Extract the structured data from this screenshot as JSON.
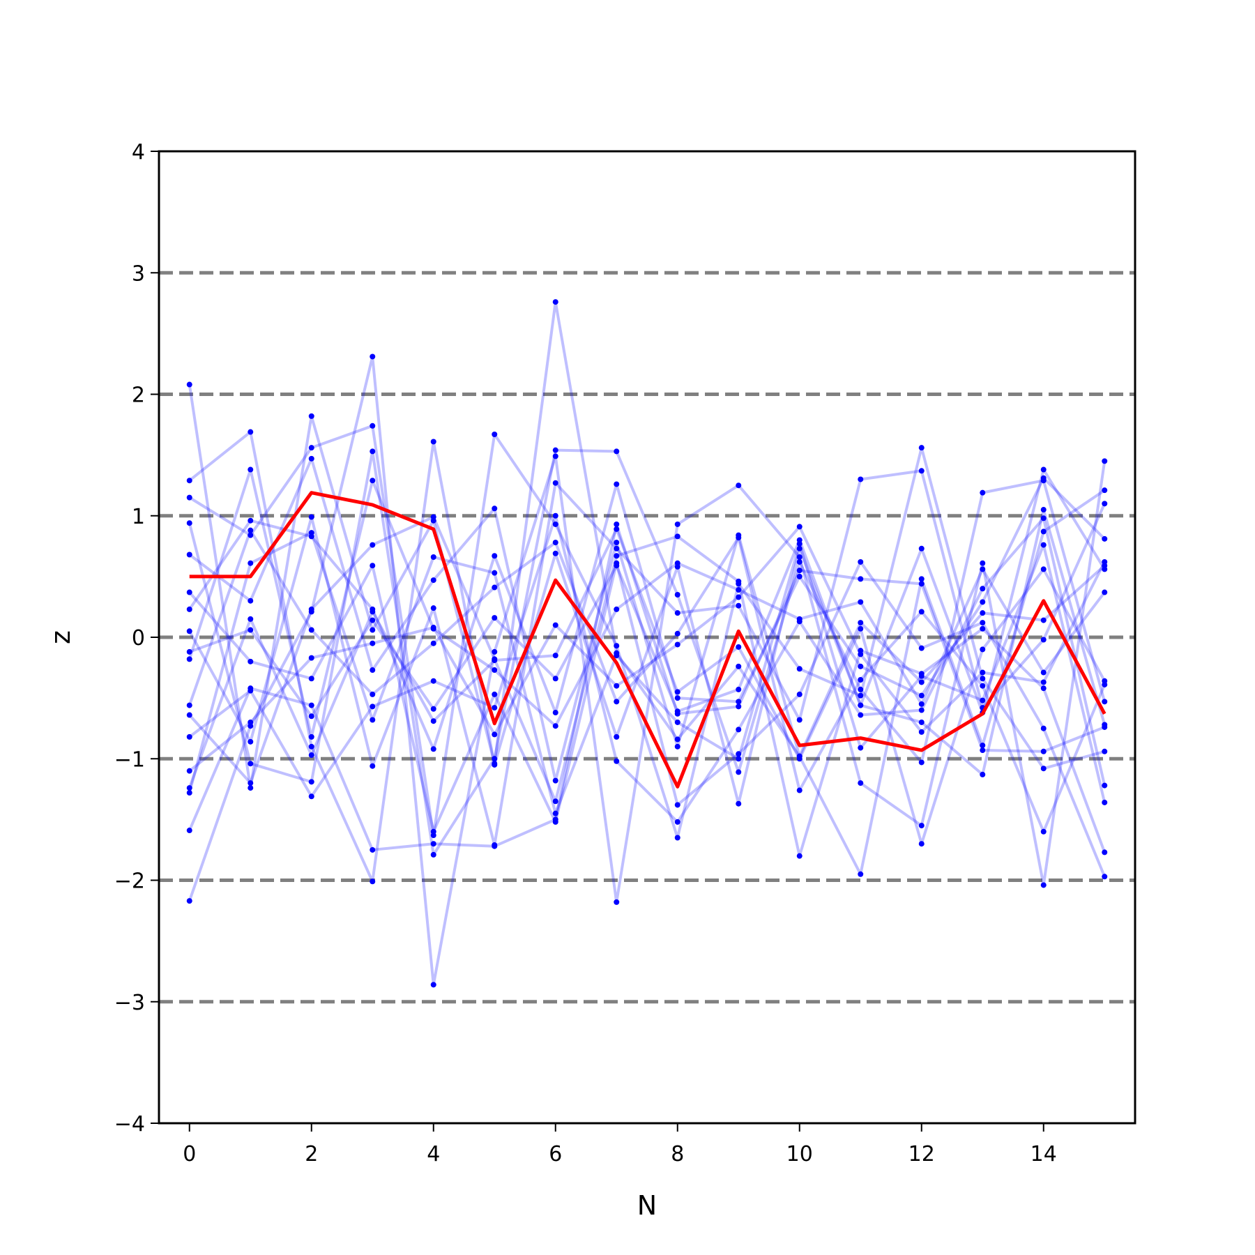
{
  "chart_data": {
    "type": "line",
    "xlabel": "N",
    "ylabel": "z",
    "xlim": [
      -0.5,
      15.5
    ],
    "ylim": [
      -4,
      4
    ],
    "x": [
      0,
      1,
      2,
      3,
      4,
      5,
      6,
      7,
      8,
      9,
      10,
      11,
      12,
      13,
      14,
      15
    ],
    "xticks": [
      0,
      2,
      4,
      6,
      8,
      10,
      12,
      14
    ],
    "xtick_labels": [
      "0",
      "2",
      "4",
      "6",
      "8",
      "10",
      "12",
      "14"
    ],
    "yticks": [
      -4,
      -3,
      -2,
      -1,
      0,
      1,
      2,
      3,
      4
    ],
    "ytick_labels": [
      "−4",
      "−3",
      "−2",
      "−1",
      "0",
      "1",
      "2",
      "3",
      "4"
    ],
    "reference_lines": [
      -3,
      -2,
      -1,
      0,
      1,
      2,
      3
    ],
    "grid": false,
    "colors": {
      "highlight": "#ff0000",
      "background": "#0000ff",
      "reference": "#808080"
    },
    "highlight_series": [
      0.5,
      0.5,
      1.19,
      1.09,
      0.89,
      -0.71,
      0.47,
      -0.21,
      -1.23,
      0.05,
      -0.89,
      -0.83,
      -0.93,
      -0.63,
      0.3,
      -0.63
    ],
    "background_series": [
      [
        2.08,
        -1.24,
        1.82,
        0.06,
        0.96,
        -1.04,
        2.76,
        -0.13,
        -0.84,
        -0.24,
        -0.98,
        0.12,
        -0.37,
        0.2,
        0.14,
        0.59
      ],
      [
        -2.17,
        -0.73,
        0.21,
        2.31,
        -2.86,
        -0.12,
        1.49,
        -2.18,
        0.93,
        1.25,
        0.66,
        -1.2,
        -1.55,
        0.61,
        -2.04,
        1.45
      ],
      [
        1.29,
        1.69,
        -0.9,
        -2.01,
        1.61,
        -1.05,
        0.69,
        -0.82,
        0.58,
        -1.37,
        0.73,
        -0.56,
        0.73,
        -0.62,
        1.38,
        0.56
      ],
      [
        1.15,
        0.84,
        1.56,
        1.74,
        -1.63,
        1.67,
        0.93,
        -0.07,
        -1.65,
        0.44,
        -0.26,
        -0.48,
        1.56,
        -0.34,
        -1.08,
        -0.94
      ],
      [
        0.94,
        -1.04,
        -1.19,
        1.53,
        -1.79,
        -1.0,
        1.54,
        1.53,
        0.35,
        -1.11,
        0.62,
        -0.43,
        -1.03,
        1.19,
        1.29,
        -0.53
      ],
      [
        0.68,
        0.3,
        1.47,
        -0.27,
        0.47,
        1.06,
        -1.18,
        0.78,
        -0.9,
        0.84,
        -0.98,
        -1.95,
        0.48,
        -0.89,
        0.87,
        1.21
      ],
      [
        0.37,
        -0.2,
        -0.34,
        0.59,
        -1.6,
        -0.47,
        -1.52,
        0.61,
        -1.38,
        -0.96,
        -0.47,
        0.62,
        -0.09,
        0.12,
        -0.75,
        -1.97
      ],
      [
        0.23,
        0.96,
        0.83,
        0.23,
        -0.92,
        0.67,
        -0.62,
        1.26,
        -0.5,
        -0.53,
        0.5,
        -0.24,
        -0.48,
        0.29,
        1.31,
        0.81
      ],
      [
        0.05,
        -0.86,
        0.99,
        -1.06,
        0.24,
        -1.71,
        1.27,
        0.73,
        0.2,
        0.26,
        -0.68,
        1.3,
        1.37,
        -0.58,
        -0.02,
        1.1
      ],
      [
        -0.12,
        0.06,
        -0.65,
        0.14,
        -0.59,
        0.16,
        -0.34,
        0.59,
        -0.61,
        -0.43,
        0.8,
        -0.56,
        -0.7,
        -1.13,
        1.05,
        -0.72
      ],
      [
        -0.18,
        1.38,
        -0.82,
        1.29,
        0.07,
        -0.27,
        -0.73,
        0.23,
        0.61,
        0.39,
        0.15,
        0.29,
        -0.55,
        0.56,
        -0.29,
        0.37
      ],
      [
        -0.56,
        0.88,
        0.06,
        -0.47,
        -0.05,
        0.41,
        0.78,
        -0.53,
        0.03,
        0.82,
        -1.26,
        -0.35,
        0.21,
        -0.4,
        -1.6,
        -0.39
      ],
      [
        -0.64,
        -1.2,
        0.23,
        0.76,
        0.99,
        -0.18,
        -1.35,
        0.67,
        0.83,
        0.46,
        -1.8,
        -0.11,
        -0.3,
        0.07,
        -0.42,
        -1.77
      ],
      [
        -0.82,
        -0.44,
        -1.31,
        -0.57,
        -0.36,
        -0.58,
        1.0,
        -1.02,
        -1.52,
        -0.76,
        0.13,
        -0.64,
        -0.6,
        0.4,
        0.98,
        -1.22
      ],
      [
        -1.1,
        -0.7,
        -0.17,
        -0.05,
        0.08,
        -0.8,
        0.1,
        -0.4,
        -0.06,
        0.33,
        0.91,
        -0.14,
        -0.78,
        -0.29,
        -0.37,
        0.62
      ],
      [
        -1.24,
        0.15,
        -0.97,
        0.21,
        -0.69,
        -0.19,
        -0.15,
        0.89,
        -0.45,
        -0.08,
        -1.0,
        0.07,
        -1.7,
        -0.1,
        0.56,
        -0.36
      ],
      [
        -1.28,
        0.61,
        0.86,
        -0.68,
        0.66,
        0.53,
        -1.45,
        -0.15,
        -0.7,
        -1.0,
        0.77,
        -0.91,
        -0.32,
        -0.52,
        0.76,
        -1.36
      ],
      [
        -1.59,
        -0.42,
        -0.56,
        -1.75,
        -1.7,
        -1.72,
        -1.5,
        0.93,
        -0.63,
        -0.57,
        0.55,
        0.48,
        0.44,
        -0.93,
        -0.94,
        -0.74
      ]
    ]
  }
}
